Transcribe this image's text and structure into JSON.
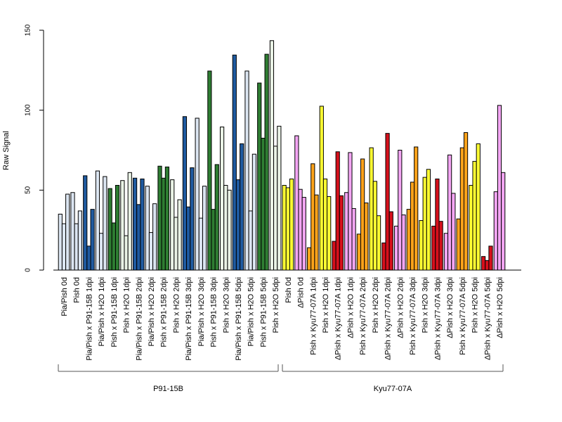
{
  "chart_data": {
    "type": "bar",
    "title": "",
    "xlabel": "",
    "ylabel": "Raw Signal",
    "ylim": [
      0,
      150
    ],
    "yticks": [
      0,
      50,
      100,
      150
    ],
    "grid": false,
    "legend": "none",
    "bar_edge_color": "#000000",
    "categories": [
      "Pia/Pish 0d",
      "Pish 0d",
      "Pia/Pish x P91-15B 1dpi",
      "Pia/Pish x H2O 1dpi",
      "Pish x P91-15B 1dpi",
      "Pish x H2O 1dpi",
      "Pia/Pish x P91-15B 2dpi",
      "Pia/Pish x H2O 2dpi",
      "Pish x P91-15B 2dpi",
      "Pish x H2O 2dpi",
      "Pia/Pish x P91-15B 3dpi",
      "Pia/Pish x H2O 3dpi",
      "Pish x P91-15B 3dpi",
      "Pish x H2O 3dpi",
      "Pia/Pish x P91-15B 5dpi",
      "Pia/Pish x H2O 5dpi",
      "Pish x P91-15B 5dpi",
      "Pish x H2O 5dpi",
      "Pish 0d",
      "ΔPish 0d",
      "Pish x Kyu77-07A 1dpi",
      "Pish x H2O 1dpi",
      "ΔPish x Kyu77-07A 1dpi",
      "ΔPish x H2O 1dpi",
      "Pish x Kyu77-07A 2dpi",
      "Pish x H2O 2dpi",
      "ΔPish x Kyu77-07A 2dpi",
      "ΔPish x H2O 2dpi",
      "Pish x Kyu77-07A 3dpi",
      "Pish x H2O 3dpi",
      "ΔPish x Kyu77-07A 3dpi",
      "ΔPish x H2O 3dpi",
      "Pish x Kyu77-07A 5dpi",
      "Pish x H2O 5dpi",
      "ΔPish x Kyu77-07A 5dpi",
      "ΔPish x H2O 5dpi"
    ],
    "colors": [
      "#dce6f2",
      "#dce6f2",
      "#1f5aa0",
      "#dce6f2",
      "#2e7d32",
      "#eaf3e6",
      "#1f5aa0",
      "#dce6f2",
      "#2e7d32",
      "#eaf3e6",
      "#1f5aa0",
      "#dce6f2",
      "#2e7d32",
      "#eaf3e6",
      "#1f5aa0",
      "#dce6f2",
      "#2e7d32",
      "#eaf3e6",
      "#ffff33",
      "#f4a6f4",
      "#ffa31a",
      "#ffff33",
      "#d7101c",
      "#f4a6f4",
      "#ffa31a",
      "#ffff33",
      "#d7101c",
      "#f4a6f4",
      "#ffa31a",
      "#ffff33",
      "#d7101c",
      "#f4a6f4",
      "#ffa31a",
      "#ffff33",
      "#d7101c",
      "#f4a6f4"
    ],
    "values": [
      [
        35,
        29,
        47.5
      ],
      [
        48.5,
        29,
        37
      ],
      [
        59,
        15,
        38
      ],
      [
        62,
        23,
        58.5
      ],
      [
        51,
        29.5,
        53
      ],
      [
        56,
        21.5,
        61
      ],
      [
        57.5,
        41,
        57
      ],
      [
        52.5,
        23.5,
        41.5
      ],
      [
        65,
        57.5,
        64.5
      ],
      [
        56.5,
        33,
        44
      ],
      [
        96,
        39.5,
        64
      ],
      [
        95,
        32.5,
        52.5
      ],
      [
        124.5,
        38,
        66
      ],
      [
        89.5,
        53,
        50
      ],
      [
        134.5,
        56.5,
        79
      ],
      [
        124.5,
        37,
        72.5
      ],
      [
        117,
        82.5,
        135
      ],
      [
        143.5,
        77.5,
        90
      ],
      [
        53,
        51.5,
        57
      ],
      [
        84,
        50.5,
        45.5
      ],
      [
        14,
        66.5,
        47
      ],
      [
        102.5,
        57,
        46
      ],
      [
        18,
        74,
        46.5
      ],
      [
        48.5,
        73.5,
        38.5
      ],
      [
        22.5,
        69.5,
        42
      ],
      [
        76.5,
        55.5,
        34
      ],
      [
        17,
        85.5,
        36.5
      ],
      [
        27.5,
        75,
        34.5
      ],
      [
        38,
        55,
        77
      ],
      [
        31,
        58,
        63
      ],
      [
        27.5,
        57,
        30.5
      ],
      [
        23,
        72,
        48
      ],
      [
        32,
        76.5,
        86
      ],
      [
        53,
        68,
        79
      ],
      [
        8.5,
        6,
        15
      ],
      [
        49,
        103,
        61
      ]
    ],
    "groups": [
      {
        "label": "P91-15B",
        "start": 0,
        "end": 17
      },
      {
        "label": "Kyu77-07A",
        "start": 18,
        "end": 35
      }
    ]
  }
}
